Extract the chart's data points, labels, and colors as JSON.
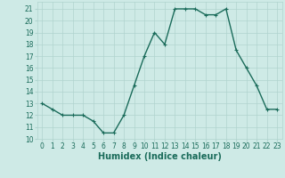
{
  "x": [
    0,
    1,
    2,
    3,
    4,
    5,
    6,
    7,
    8,
    9,
    10,
    11,
    12,
    13,
    14,
    15,
    16,
    17,
    18,
    19,
    20,
    21,
    22,
    23
  ],
  "y": [
    13,
    12.5,
    12,
    12,
    12,
    11.5,
    10.5,
    10.5,
    12,
    14.5,
    17,
    19,
    18,
    21,
    21,
    21,
    20.5,
    20.5,
    21,
    17.5,
    16,
    14.5,
    12.5,
    12.5
  ],
  "line_color": "#1a6b5a",
  "marker_color": "#1a6b5a",
  "bg_color": "#ceeae6",
  "grid_color": "#b0d4cf",
  "xlabel": "Humidex (Indice chaleur)",
  "ylim": [
    10,
    21.6
  ],
  "xlim": [
    -0.5,
    23.5
  ],
  "yticks": [
    10,
    11,
    12,
    13,
    14,
    15,
    16,
    17,
    18,
    19,
    20,
    21
  ],
  "xticks": [
    0,
    1,
    2,
    3,
    4,
    5,
    6,
    7,
    8,
    9,
    10,
    11,
    12,
    13,
    14,
    15,
    16,
    17,
    18,
    19,
    20,
    21,
    22,
    23
  ],
  "font_color": "#1a6b5a",
  "tick_fontsize": 5.5,
  "xlabel_fontsize": 7.0,
  "linewidth": 1.0,
  "markersize": 3.0,
  "markeredgewidth": 0.8
}
